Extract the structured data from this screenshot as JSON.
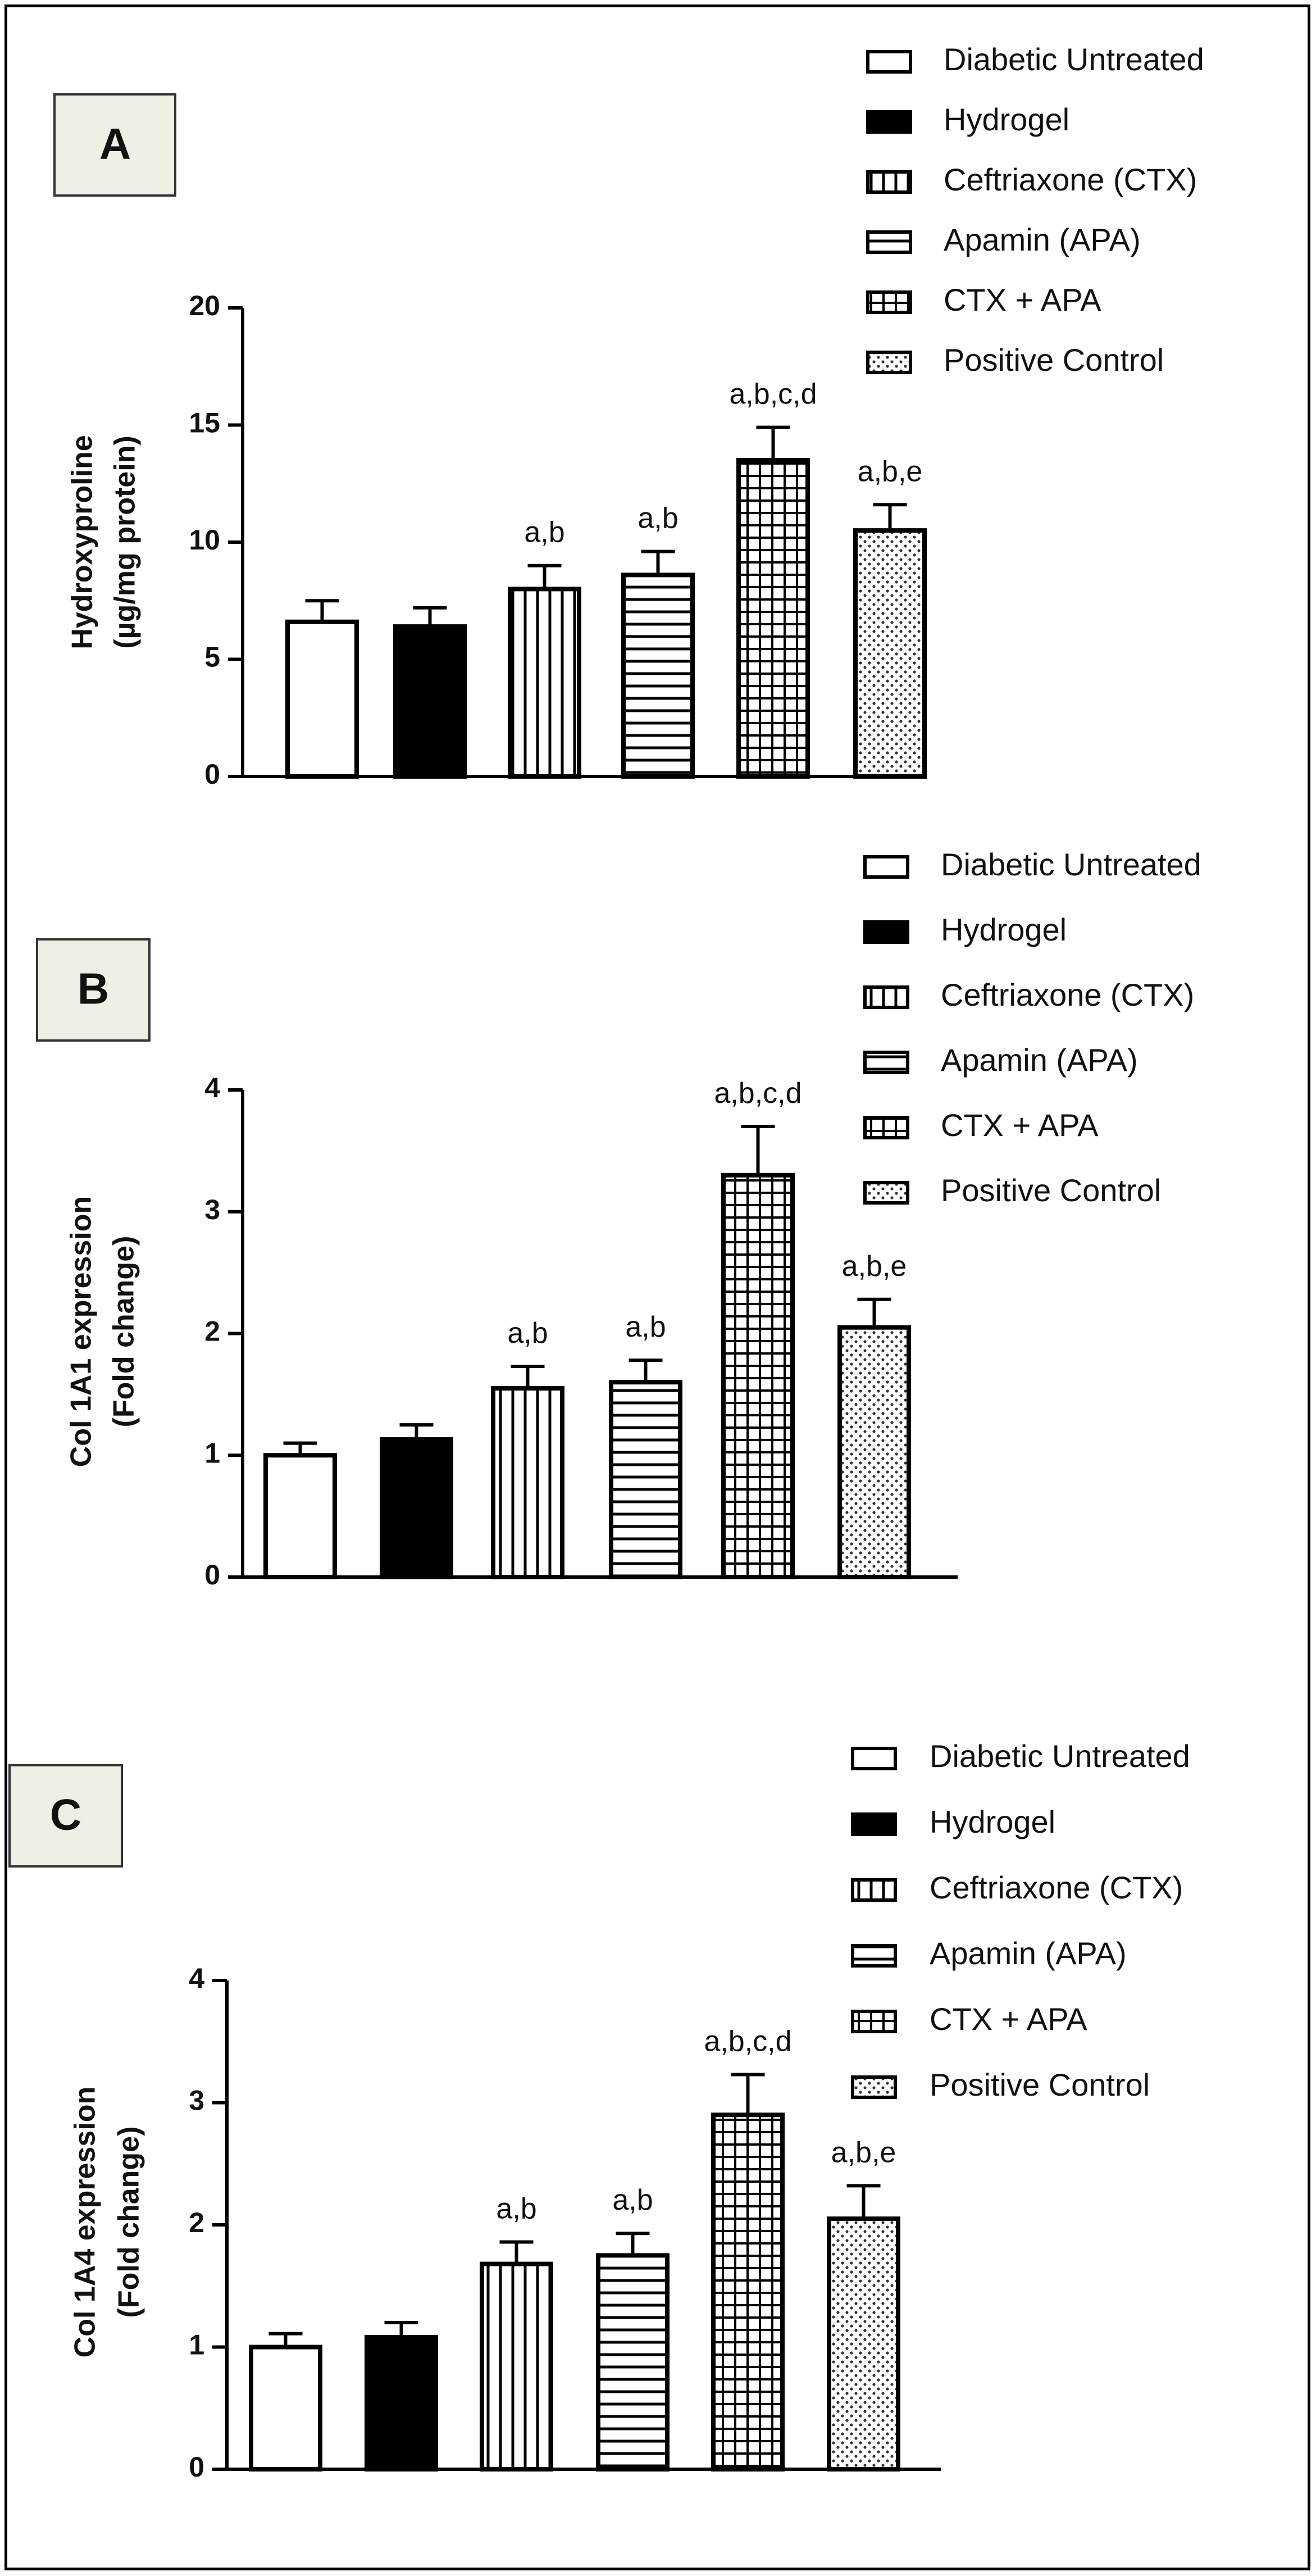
{
  "legend_items": [
    {
      "label": "Diabetic Untreated",
      "pattern": "white"
    },
    {
      "label": "Hydrogel",
      "pattern": "black"
    },
    {
      "label": "Ceftriaxone (CTX)",
      "pattern": "vlines"
    },
    {
      "label": "Apamin (APA)",
      "pattern": "hlines"
    },
    {
      "label": "CTX + APA",
      "pattern": "grid"
    },
    {
      "label": "Positive Control",
      "pattern": "dots"
    }
  ],
  "chart_data": [
    {
      "type": "bar",
      "panel_label": "A",
      "ylabel": "Hydroxyproline",
      "ylabel2": "(µg/mg protein)",
      "ylim": [
        0,
        20
      ],
      "yticks": [
        0,
        5,
        10,
        15,
        20
      ],
      "categories": [
        "Diabetic Untreated",
        "Hydrogel",
        "Ceftriaxone (CTX)",
        "Apamin (APA)",
        "CTX + APA",
        "Positive Control"
      ],
      "values": [
        6.6,
        6.4,
        8.0,
        8.6,
        13.5,
        10.5
      ],
      "errors": [
        0.9,
        0.8,
        1.0,
        1.0,
        1.4,
        1.1
      ],
      "annotations": [
        "",
        "",
        "a,b",
        "a,b",
        "a,b,c,d",
        "a,b,e"
      ],
      "legend_position": "top-right"
    },
    {
      "type": "bar",
      "panel_label": "B",
      "ylabel": "Col 1A1 expression",
      "ylabel2": "(Fold change)",
      "ylim": [
        0,
        4
      ],
      "yticks": [
        0,
        1,
        2,
        3,
        4
      ],
      "categories": [
        "Diabetic Untreated",
        "Hydrogel",
        "Ceftriaxone (CTX)",
        "Apamin (APA)",
        "CTX + APA",
        "Positive Control"
      ],
      "values": [
        1.0,
        1.13,
        1.55,
        1.6,
        3.3,
        2.05
      ],
      "errors": [
        0.1,
        0.12,
        0.18,
        0.18,
        0.4,
        0.23
      ],
      "annotations": [
        "",
        "",
        "a,b",
        "a,b",
        "a,b,c,d",
        "a,b,e"
      ],
      "legend_position": "top-right"
    },
    {
      "type": "bar",
      "panel_label": "C",
      "ylabel": "Col 1A4 expression",
      "ylabel2": "(Fold change)",
      "ylim": [
        0,
        4
      ],
      "yticks": [
        0,
        1,
        2,
        3,
        4
      ],
      "categories": [
        "Diabetic Untreated",
        "Hydrogel",
        "Ceftriaxone (CTX)",
        "Apamin (APA)",
        "CTX + APA",
        "Positive Control"
      ],
      "values": [
        1.0,
        1.08,
        1.68,
        1.75,
        2.9,
        2.05
      ],
      "errors": [
        0.11,
        0.12,
        0.18,
        0.18,
        0.33,
        0.27
      ],
      "annotations": [
        "",
        "",
        "a,b",
        "a,b",
        "a,b,c,d",
        "a,b,e"
      ],
      "legend_position": "top-right"
    }
  ]
}
